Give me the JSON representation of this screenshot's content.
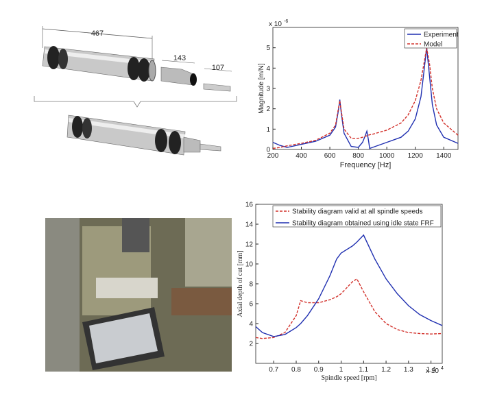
{
  "drawing": {
    "dimensions": [
      "467",
      "143",
      "107"
    ]
  },
  "chart_data": [
    {
      "type": "line",
      "x_label": "Frequency [Hz]",
      "y_label": "Magnitude [m/N]",
      "y_multiplier": {
        "base": "x 10",
        "exponent": "-6"
      },
      "x": [
        200,
        250,
        300,
        400,
        500,
        600,
        640,
        660,
        670,
        680,
        700,
        750,
        800,
        830,
        850,
        860,
        870,
        880,
        900,
        1000,
        1100,
        1150,
        1200,
        1240,
        1260,
        1280,
        1300,
        1320,
        1350,
        1400,
        1500
      ],
      "series": [
        {
          "name": "Experiment",
          "color": "#1f2fb0",
          "dash": "solid",
          "values": [
            0.35,
            0.2,
            0.1,
            0.25,
            0.4,
            0.7,
            1.1,
            1.9,
            2.45,
            1.8,
            0.8,
            0.15,
            0.1,
            0.35,
            0.7,
            0.9,
            0.5,
            0.05,
            0.1,
            0.35,
            0.6,
            0.9,
            1.5,
            2.6,
            3.8,
            5.0,
            3.6,
            2.2,
            1.2,
            0.6,
            0.3
          ]
        },
        {
          "name": "Model",
          "color": "#d2302a",
          "dash": "dashed",
          "values": [
            0.05,
            0.1,
            0.18,
            0.3,
            0.45,
            0.8,
            1.2,
            2.0,
            2.4,
            1.9,
            1.0,
            0.55,
            0.55,
            0.6,
            0.65,
            0.67,
            0.7,
            0.72,
            0.75,
            0.95,
            1.3,
            1.7,
            2.4,
            3.4,
            4.2,
            5.0,
            4.2,
            3.0,
            2.0,
            1.3,
            0.7
          ]
        }
      ],
      "xlim": [
        200,
        1500
      ],
      "xticks": [
        200,
        400,
        600,
        800,
        1000,
        1200,
        1400
      ],
      "ylim": [
        0,
        6
      ],
      "yticks": [
        0,
        1,
        2,
        3,
        4,
        5
      ],
      "legend": "top-right"
    },
    {
      "type": "line",
      "x_label": "Spindle speed [rpm]",
      "y_label": "Axial depth of cut [mm]",
      "x_multiplier": {
        "base": "x 10",
        "exponent": "4"
      },
      "x": [
        0.62,
        0.65,
        0.7,
        0.75,
        0.8,
        0.82,
        0.85,
        0.9,
        0.95,
        0.98,
        1.0,
        1.05,
        1.07,
        1.1,
        1.15,
        1.2,
        1.25,
        1.3,
        1.35,
        1.4,
        1.45
      ],
      "series": [
        {
          "name": "Stability diagram valid at all spindle speeds",
          "color": "#d2302a",
          "dash": "dashed",
          "values": [
            2.6,
            2.5,
            2.6,
            3.1,
            4.8,
            6.3,
            6.1,
            6.1,
            6.4,
            6.7,
            7.0,
            8.2,
            8.5,
            7.2,
            5.2,
            4.0,
            3.4,
            3.1,
            3.0,
            2.95,
            3.0
          ]
        },
        {
          "name": "Stability diagram obtained using idle state FRF",
          "color": "#1f2fb0",
          "dash": "solid",
          "values": [
            3.7,
            3.1,
            2.7,
            2.9,
            3.6,
            4.0,
            4.8,
            6.5,
            8.8,
            10.5,
            11.1,
            11.8,
            12.2,
            12.9,
            10.5,
            8.5,
            7.0,
            5.8,
            4.9,
            4.3,
            3.8
          ]
        }
      ],
      "xlim": [
        0.62,
        1.45
      ],
      "xticks": [
        0.7,
        0.8,
        0.9,
        1,
        1.1,
        1.2,
        1.3,
        1.4
      ],
      "ylim": [
        0,
        16
      ],
      "yticks": [
        2,
        4,
        6,
        8,
        10,
        12,
        14,
        16
      ],
      "legend": "top-left"
    }
  ]
}
